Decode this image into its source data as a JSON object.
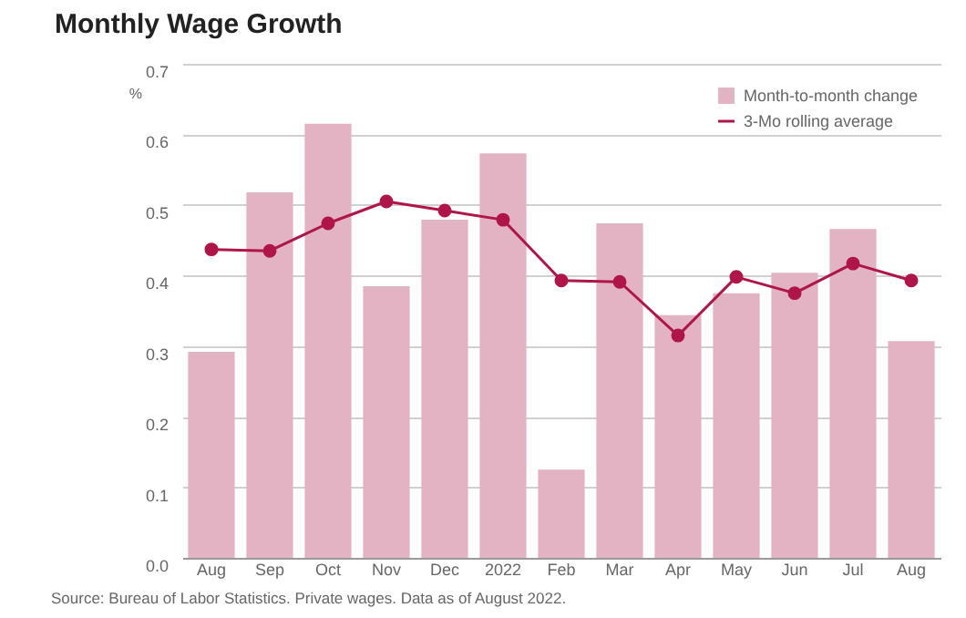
{
  "chart_data": {
    "type": "bar",
    "title": "Monthly Wage Growth",
    "ylabel": "%",
    "categories": [
      "Aug",
      "Sep",
      "Oct",
      "Nov",
      "Dec",
      "2022",
      "Feb",
      "Mar",
      "Apr",
      "May",
      "Jun",
      "Jul",
      "Aug"
    ],
    "series": [
      {
        "name": "Month-to-month change",
        "color": "#e2b3c2",
        "values": [
          0.292,
          0.518,
          0.615,
          0.385,
          0.479,
          0.573,
          0.125,
          0.474,
          0.344,
          0.375,
          0.404,
          0.466,
          0.307
        ]
      },
      {
        "name": "3-Mo rolling average",
        "type": "line",
        "color": "#b0154a",
        "marker": "circle",
        "values": [
          0.437,
          0.435,
          0.474,
          0.505,
          0.492,
          0.479,
          0.393,
          0.391,
          0.315,
          0.398,
          0.375,
          0.417,
          0.393
        ]
      }
    ],
    "ylim": [
      0,
      0.7
    ],
    "yticks": [
      {
        "value": 0,
        "label": "0.0"
      },
      0.1,
      0.2,
      0.3,
      0.4,
      0.5,
      0.6,
      0.7
    ],
    "grid": "y",
    "legend": "top right",
    "annotations": [
      "Source: Bureau of Labor Statistics. Private wages. Data as of August 2022."
    ]
  }
}
